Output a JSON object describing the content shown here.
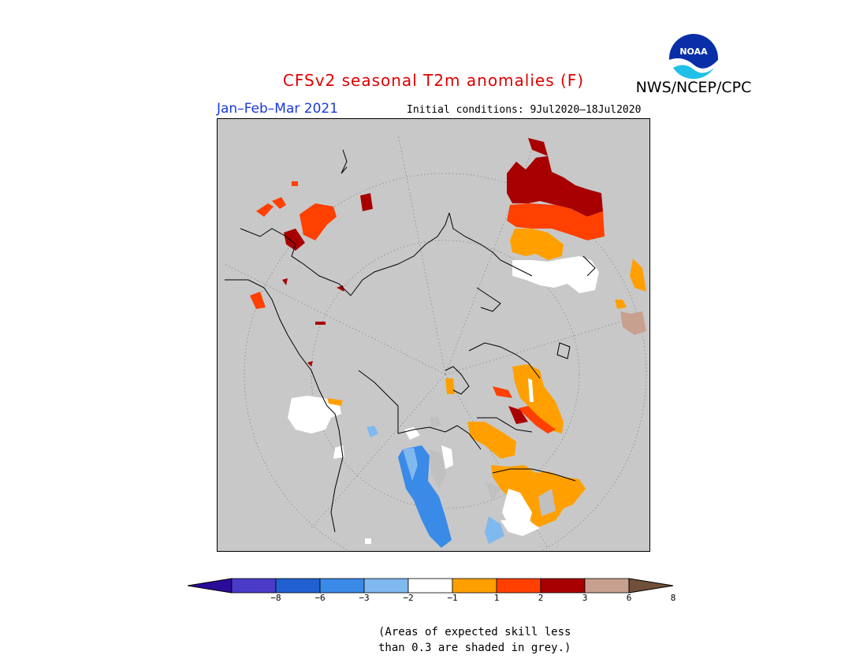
{
  "title": "CFSv2 seasonal T2m anomalies (F)",
  "agency": "NWS/NCEP/CPC",
  "logo_text": "NOAA",
  "season": "Jan–Feb–Mar 2021",
  "initial_conditions": "Initial conditions: 9Jul2020–18Jul2020",
  "legend": {
    "ticks": [
      "−8",
      "−6",
      "−3",
      "−2",
      "−1",
      "1",
      "2",
      "3",
      "6",
      "8"
    ],
    "colors": [
      "#2a0c9a",
      "#4a3cc8",
      "#2060d0",
      "#3a8ae8",
      "#80b8f0",
      "#ffffff",
      "#ffa000",
      "#ff4000",
      "#a80000",
      "#c8a090",
      "#70503a"
    ]
  },
  "footnote_line1": "(Areas of expected skill less",
  "footnote_line2": "than 0.3 are shaded in grey.)"
}
